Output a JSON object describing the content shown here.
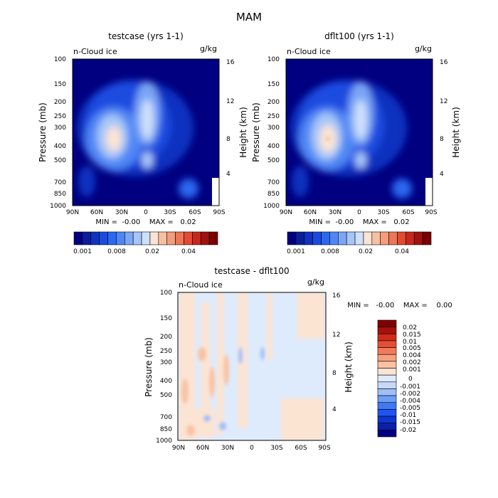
{
  "figure_title": "MAM",
  "colors": {
    "main_scale": [
      "#000080",
      "#0a1e9c",
      "#0f32c0",
      "#1a4be0",
      "#2c67f0",
      "#4f86f4",
      "#7aa6f6",
      "#a6c6f8",
      "#cfe0fb",
      "#fbe4d4",
      "#f8c0a3",
      "#f59c7b",
      "#ee7556",
      "#e24a34",
      "#c8281c",
      "#a0120f",
      "#7a0000"
    ],
    "diff_scale": [
      "#000080",
      "#0a20a8",
      "#1034d0",
      "#1e55f0",
      "#3f7af4",
      "#6f9ef7",
      "#9fbff9",
      "#c6d9fb",
      "#deebfc",
      "#fce4d3",
      "#fac2a3",
      "#f7a07f",
      "#f27a5a",
      "#e64e34",
      "#cf2b1a",
      "#a81008",
      "#800000"
    ]
  },
  "chart_data": [
    {
      "type": "heatmap",
      "title": "testcase (yrs 1-1)",
      "overlay_label": "n-Cloud ice",
      "units": "g/kg",
      "ylabel": "Pressure (mb)",
      "y2label": "Height (km)",
      "x_ticks": [
        "90N",
        "60N",
        "30N",
        "0",
        "30S",
        "60S",
        "90S"
      ],
      "y_ticks": [
        "100",
        "150",
        "200",
        "250",
        "300",
        "400",
        "500",
        "700",
        "850",
        "1000"
      ],
      "y2_ticks": [
        "16",
        "12",
        "8",
        "4"
      ],
      "ylim": [
        1000,
        100
      ],
      "stats": "MIN =  -0.00    MAX =   0.02",
      "colorbar_labels": [
        "0.001",
        "0.008",
        "0.02",
        "0.04"
      ],
      "features": [
        {
          "lat": 35,
          "pressure": 340,
          "value": 0.02
        },
        {
          "lat": 0,
          "pressure": 270,
          "value": 0.012
        },
        {
          "lat": 0,
          "pressure": 500,
          "value": 0.006
        }
      ]
    },
    {
      "type": "heatmap",
      "title": "dflt100 (yrs 1-1)",
      "overlay_label": "n-Cloud ice",
      "units": "g/kg",
      "ylabel": "Pressure (mb)",
      "y2label": "Height (km)",
      "x_ticks": [
        "90N",
        "60N",
        "30N",
        "0",
        "30S",
        "60S",
        "90S"
      ],
      "y_ticks": [
        "100",
        "150",
        "200",
        "250",
        "300",
        "400",
        "500",
        "700",
        "850",
        "1000"
      ],
      "y2_ticks": [
        "16",
        "12",
        "8",
        "4"
      ],
      "ylim": [
        1000,
        100
      ],
      "stats": "MIN =  -0.00    MAX =   0.02",
      "colorbar_labels": [
        "0.001",
        "0.008",
        "0.02",
        "0.04"
      ],
      "features": [
        {
          "lat": 35,
          "pressure": 340,
          "value": 0.022
        },
        {
          "lat": 0,
          "pressure": 270,
          "value": 0.012
        },
        {
          "lat": 0,
          "pressure": 500,
          "value": 0.006
        }
      ]
    },
    {
      "type": "heatmap",
      "title": "testcase - dflt100",
      "overlay_label": "n-Cloud ice",
      "units": "g/kg",
      "ylabel": "Pressure (mb)",
      "y2label": "Height (km)",
      "x_ticks": [
        "90N",
        "60N",
        "30N",
        "0",
        "30S",
        "60S",
        "90S"
      ],
      "y_ticks": [
        "100",
        "150",
        "200",
        "250",
        "300",
        "400",
        "500",
        "700",
        "850",
        "1000"
      ],
      "y2_ticks": [
        "16",
        "12",
        "8",
        "4"
      ],
      "ylim": [
        1000,
        100
      ],
      "stats": "MIN =   -0.00    MAX =    0.00",
      "colorbar_labels": [
        "0.02",
        "0.015",
        "0.01",
        "0.005",
        "0.004",
        "0.002",
        "0.001",
        "0",
        "-0.001",
        "-0.002",
        "-0.004",
        "-0.005",
        "-0.01",
        "-0.015",
        "-0.02"
      ]
    }
  ]
}
